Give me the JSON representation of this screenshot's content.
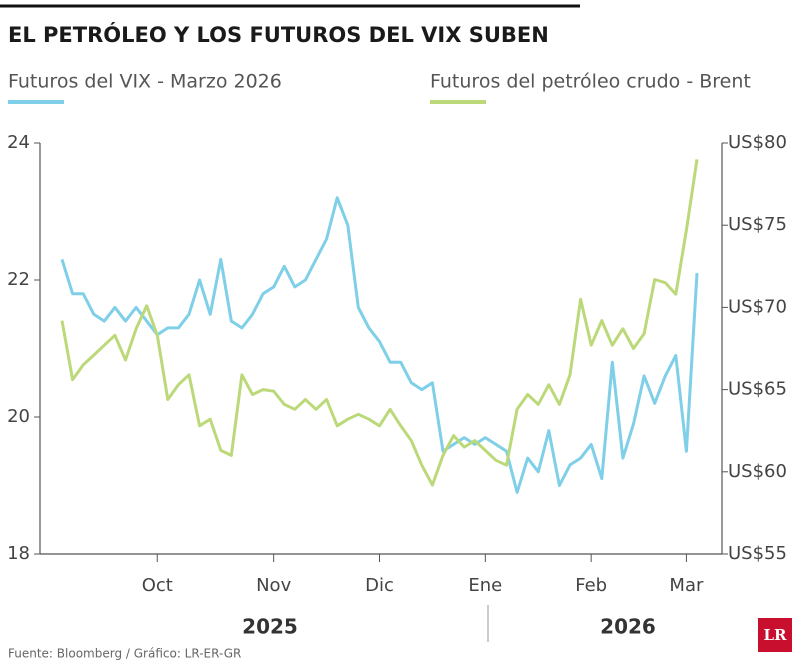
{
  "chart_data": {
    "type": "line",
    "title": "EL PETRÓLEO Y LOS FUTUROS DEL VIX SUBEN",
    "categories": [
      null,
      null,
      null,
      null,
      null,
      null,
      null,
      null,
      null,
      "Oct",
      null,
      null,
      null,
      null,
      null,
      null,
      null,
      null,
      null,
      null,
      "Nov",
      null,
      null,
      null,
      null,
      null,
      null,
      null,
      null,
      null,
      "Dic",
      null,
      null,
      null,
      null,
      null,
      null,
      null,
      null,
      null,
      "Ene",
      null,
      null,
      null,
      null,
      null,
      null,
      null,
      null,
      null,
      "Feb",
      null,
      null,
      null,
      null,
      null,
      null,
      null,
      null,
      "Mar",
      null
    ],
    "year_labels": [
      "2025",
      "2026"
    ],
    "series": [
      {
        "name": "Futuros del VIX - Marzo 2026",
        "color": "#7fcfe8",
        "axis": "y",
        "values": [
          22.3,
          21.8,
          21.8,
          21.5,
          21.4,
          21.6,
          21.4,
          21.6,
          21.4,
          21.2,
          21.3,
          21.3,
          21.5,
          22.0,
          21.5,
          22.3,
          21.4,
          21.3,
          21.5,
          21.8,
          21.9,
          22.2,
          21.9,
          22.0,
          22.3,
          22.6,
          23.2,
          22.8,
          21.6,
          21.3,
          21.1,
          20.8,
          20.8,
          20.5,
          20.4,
          20.5,
          19.5,
          19.6,
          19.7,
          19.6,
          19.7,
          19.6,
          19.5,
          18.9,
          19.4,
          19.2,
          19.8,
          19.0,
          19.3,
          19.4,
          19.6,
          19.1,
          20.8,
          19.4,
          19.9,
          20.6,
          20.2,
          20.6,
          20.9,
          19.5,
          22.1
        ]
      },
      {
        "name": "Futuros del petróleo crudo - Brent",
        "color": "#bcd97a",
        "axis": "y2",
        "values": [
          69.2,
          65.6,
          66.5,
          67.1,
          67.7,
          68.3,
          66.8,
          68.7,
          70.1,
          68.3,
          64.4,
          65.3,
          65.9,
          62.8,
          63.2,
          61.3,
          61.0,
          65.9,
          64.7,
          65.0,
          64.9,
          64.1,
          63.8,
          64.4,
          63.8,
          64.4,
          62.8,
          63.2,
          63.5,
          63.2,
          62.8,
          63.8,
          62.8,
          61.9,
          60.4,
          59.2,
          61.0,
          62.2,
          61.5,
          61.9,
          61.3,
          60.7,
          60.4,
          63.8,
          64.7,
          64.1,
          65.3,
          64.1,
          65.9,
          70.5,
          67.7,
          69.2,
          67.7,
          68.7,
          67.5,
          68.4,
          71.7,
          71.5,
          70.8,
          74.7,
          79.0
        ]
      }
    ],
    "ylim": [
      18,
      24
    ],
    "yticks": [
      18,
      20,
      22,
      24
    ],
    "y2lim": [
      55,
      80
    ],
    "y2ticks": [
      {
        "value": 55,
        "label": "US$55"
      },
      {
        "value": 60,
        "label": "US$60"
      },
      {
        "value": 65,
        "label": "US$65"
      },
      {
        "value": 70,
        "label": "US$70"
      },
      {
        "value": 75,
        "label": "US$75"
      },
      {
        "value": 80,
        "label": "US$80"
      }
    ],
    "grid": false,
    "source": "Fuente: Bloomberg / Gráfico: LR-ER-GR",
    "logo": "LR"
  }
}
